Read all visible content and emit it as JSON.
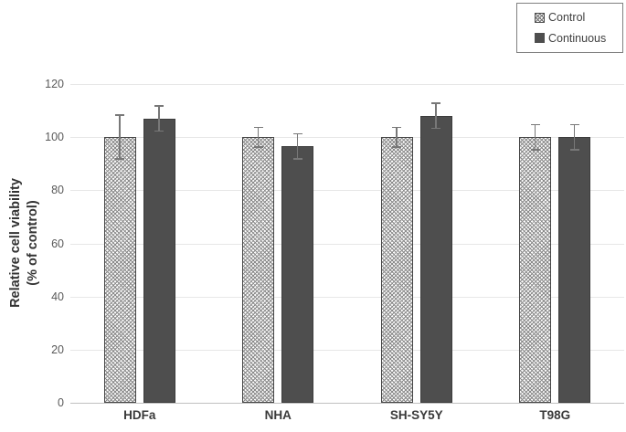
{
  "chart_data": {
    "type": "bar",
    "title": "",
    "categories": [
      "HDFa",
      "NHA",
      "SH-SY5Y",
      "T98G"
    ],
    "series": [
      {
        "name": "Control",
        "style": "hatch",
        "values": [
          100,
          100,
          100,
          100
        ],
        "errors": [
          8.5,
          4,
          4,
          5
        ]
      },
      {
        "name": "Continuous",
        "style": "solid",
        "values": [
          107,
          96.5,
          108,
          100
        ],
        "errors": [
          5,
          5,
          5,
          5
        ]
      }
    ],
    "ylabel_line1": "Relative cell viability",
    "ylabel_line2": "(% of control)",
    "xlabel": "",
    "ylim": [
      0,
      120
    ],
    "yticks": [
      0,
      20,
      40,
      60,
      80,
      100,
      120
    ],
    "grid": "horizontal",
    "legend_position": "top-right",
    "error_bars": "both-directions-with-caps"
  },
  "colors": {
    "continuous_fill": "#4e4e4e",
    "bar_border": "#3c3c3c",
    "control_fill": "#fcfcfc",
    "control_hatch_line": "#8a8a8a",
    "error_bar": "#787878",
    "gridline": "#e7e7e7",
    "axis_line": "#c0c0c0",
    "tick_label": "#595959",
    "category_label": "#3a3a3a",
    "legend_border": "#808080",
    "legend_text": "#404040",
    "background": "#ffffff"
  }
}
